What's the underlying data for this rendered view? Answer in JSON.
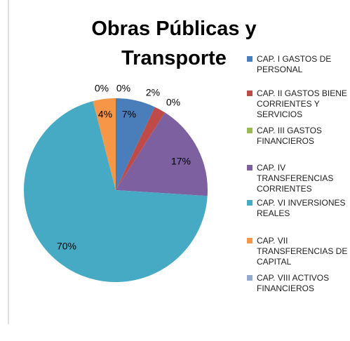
{
  "chart_data": {
    "type": "pie",
    "title": "Obras Públicas y Transporte",
    "categories": [
      "CAP. I GASTOS DE PERSONAL",
      "CAP. II GASTOS BIENE CORRIENTES Y SERVICIOS",
      "CAP. III GASTOS FINANCIEROS",
      "CAP. IV TRANSFERENCIAS CORRIENTES",
      "CAP. VI INVERSIONES REALES",
      "CAP. VII TRANSFERENCIAS DE CAPITAL",
      "CAP. VIII ACTIVOS FINANCIEROS",
      null
    ],
    "values": [
      7,
      2,
      0,
      17,
      70,
      4,
      0,
      0
    ],
    "value_labels": [
      "7%",
      "2%",
      "0%",
      "17%",
      "70%",
      "4%",
      "0%",
      "0%"
    ],
    "colors": [
      "#4a7ebb",
      "#be4b48",
      "#98b954",
      "#7d60a0",
      "#46aac5",
      "#f79646",
      "#93a9cf",
      "#d99694"
    ]
  }
}
